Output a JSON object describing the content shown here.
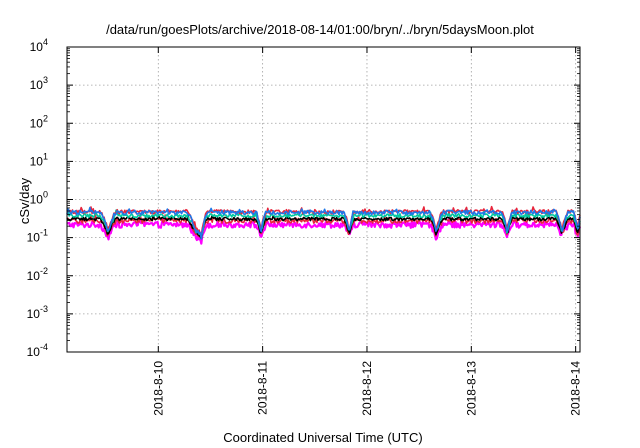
{
  "chart_data": {
    "type": "line",
    "title": "/data/run/goesPlots/archive/2018-08-14/01:00/bryn/../bryn/5daysMoon.plot",
    "xlabel": "Coordinated Universal Time (UTC)",
    "ylabel": "cSv/day",
    "yscale": "log",
    "ylim": [
      0.0001,
      10000
    ],
    "xlim": [
      "2018-08-09T03:00",
      "2018-08-14T01:00"
    ],
    "grid": true,
    "yticks": [
      {
        "value": 0.0001,
        "base": "10",
        "exp": "-4"
      },
      {
        "value": 0.001,
        "base": "10",
        "exp": "-3"
      },
      {
        "value": 0.01,
        "base": "10",
        "exp": "-2"
      },
      {
        "value": 0.1,
        "base": "10",
        "exp": "-1"
      },
      {
        "value": 1,
        "base": "10",
        "exp": "0"
      },
      {
        "value": 10,
        "base": "10",
        "exp": "1"
      },
      {
        "value": 100,
        "base": "10",
        "exp": "2"
      },
      {
        "value": 1000,
        "base": "10",
        "exp": "3"
      },
      {
        "value": 10000,
        "base": "10",
        "exp": "4"
      }
    ],
    "xticks": [
      {
        "label": "2018-8-10",
        "date": "2018-08-10T00:00"
      },
      {
        "label": "2018-8-11",
        "date": "2018-08-11T00:00"
      },
      {
        "label": "2018-8-12",
        "date": "2018-08-12T00:00"
      },
      {
        "label": "2018-8-13",
        "date": "2018-08-13T00:00"
      },
      {
        "label": "2018-8-14",
        "date": "2018-08-14T00:00"
      }
    ],
    "series": [
      {
        "color": "#ff00ff",
        "base": 0.22,
        "noise": 0.35,
        "spike": 0.45
      },
      {
        "color": "#e8253b",
        "base": 0.28,
        "noise": 0.3,
        "spike": 0.35
      },
      {
        "color": "#000000",
        "base": 0.31,
        "noise": 0.2,
        "spike": 0.25
      },
      {
        "color": "#00c8a0",
        "base": 0.38,
        "noise": 0.22,
        "spike": 0.25
      },
      {
        "color": "#e8253b",
        "base": 0.48,
        "noise": 0.25,
        "spike": 0.25
      },
      {
        "color": "#1f78e8",
        "base": 0.46,
        "noise": 0.25,
        "spike": 0.25
      }
    ]
  }
}
